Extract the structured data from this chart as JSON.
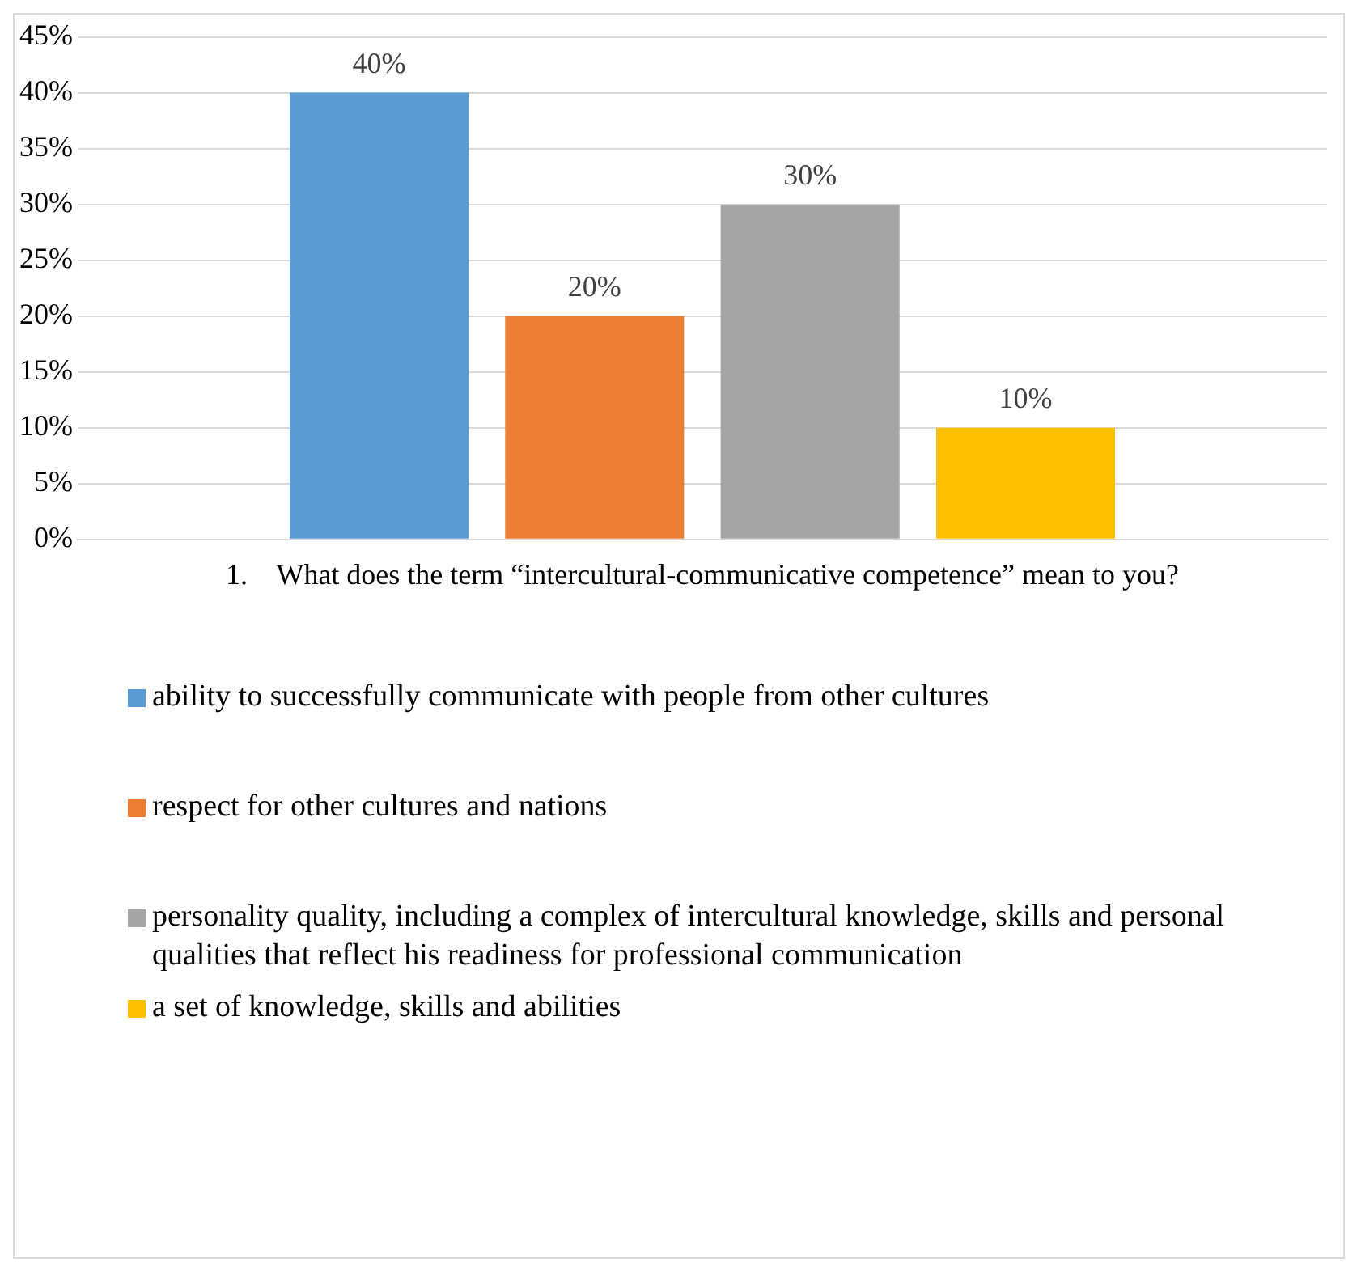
{
  "chart_data": {
    "type": "bar",
    "categories": [
      "1.    What does the term “intercultural-communicative competence” mean to you?"
    ],
    "series": [
      {
        "name": "ability to successfully communicate with people from other cultures",
        "color": "#5b9bd5",
        "values": [
          40
        ],
        "value_labels": [
          "40%"
        ]
      },
      {
        "name": "respect for other cultures and nations",
        "color": "#ed7d31",
        "values": [
          20
        ],
        "value_labels": [
          "20%"
        ]
      },
      {
        "name": "personality quality, including a complex of intercultural knowledge, skills and personal qualities that reflect his readiness for professional communication",
        "color": "#a5a5a5",
        "values": [
          30
        ],
        "value_labels": [
          "30%"
        ]
      },
      {
        "name": "a set of knowledge, skills and abilities",
        "color": "#ffc000",
        "values": [
          10
        ],
        "value_labels": [
          "10%"
        ]
      }
    ],
    "ylim": [
      0,
      45
    ],
    "yticks": [
      {
        "value": 0,
        "label": "0%"
      },
      {
        "value": 5,
        "label": "5%"
      },
      {
        "value": 10,
        "label": "10%"
      },
      {
        "value": 15,
        "label": "15%"
      },
      {
        "value": 20,
        "label": "20%"
      },
      {
        "value": 25,
        "label": "25%"
      },
      {
        "value": 30,
        "label": "30%"
      },
      {
        "value": 35,
        "label": "35%"
      },
      {
        "value": 40,
        "label": "40%"
      },
      {
        "value": 45,
        "label": "45%"
      }
    ],
    "grid": "y",
    "legend": "bottom"
  }
}
